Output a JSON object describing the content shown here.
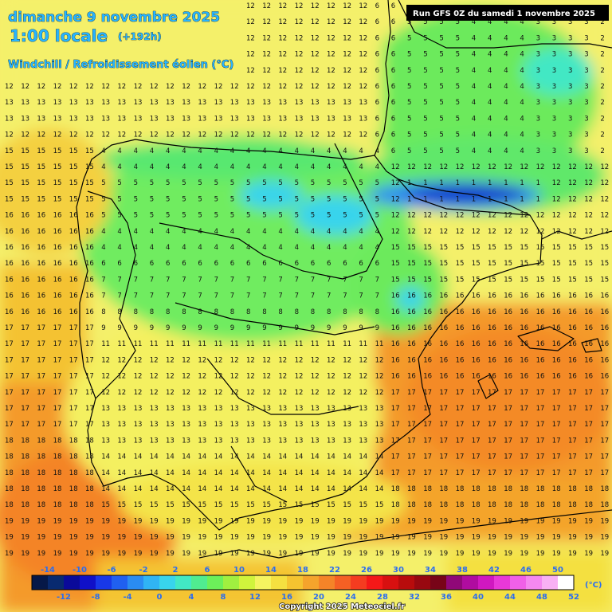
{
  "header": {
    "date_line": "dimanche 9 novembre 2025",
    "time_line": "1:00 locale",
    "lead_time": "(+192h)",
    "parameter": "Windchill / Refroidissement éolien (°C)",
    "run_info": "Run GFS 0Z du samedi 1 novembre 2025"
  },
  "legend": {
    "unit": "(°C)",
    "top_ticks": [
      "-14",
      "-10",
      "-6",
      "-2",
      "2",
      "6",
      "10",
      "14",
      "18",
      "22",
      "26",
      "30",
      "34",
      "38",
      "42",
      "46",
      "50"
    ],
    "bottom_ticks": [
      "-12",
      "-8",
      "-4",
      "0",
      "4",
      "8",
      "12",
      "16",
      "20",
      "24",
      "28",
      "32",
      "36",
      "40",
      "44",
      "48",
      "52"
    ],
    "colors": [
      "#061848",
      "#082a70",
      "#0a0a9a",
      "#1010c8",
      "#1838e8",
      "#2060f0",
      "#2a8cf2",
      "#30b4f4",
      "#38d4ec",
      "#42e8c4",
      "#50ec90",
      "#6cf05a",
      "#a0f040",
      "#d0f43c",
      "#f4f460",
      "#f4e040",
      "#f4c430",
      "#f4a42c",
      "#f48428",
      "#f46024",
      "#f43c20",
      "#f41818",
      "#d81010",
      "#b80c0c",
      "#980810",
      "#780418",
      "#900878",
      "#b00ca0",
      "#d018c0",
      "#e838d8",
      "#f060e8",
      "#f488f0",
      "#f8b0f4",
      "#ffffff"
    ]
  },
  "copyright": "Copyright 2025 Meteociel.fr",
  "colors": {
    "label": "#28b4ff",
    "border": "#000000"
  }
}
